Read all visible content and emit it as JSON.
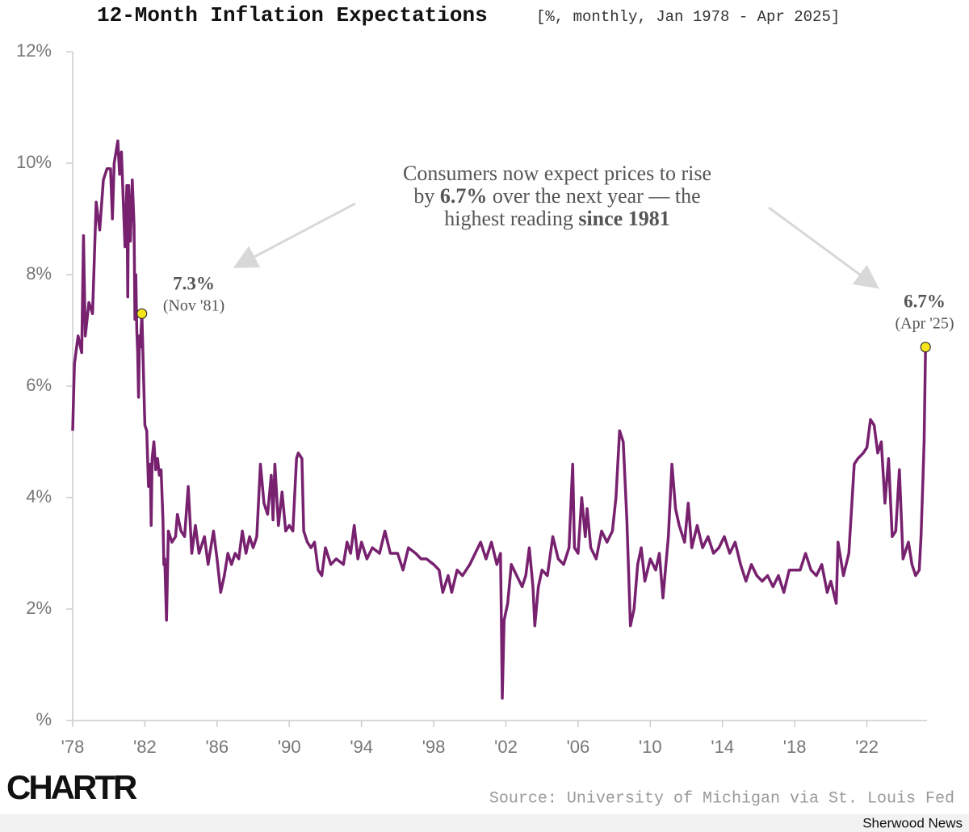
{
  "chart_data": {
    "type": "line",
    "title": "12-Month Inflation Expectations",
    "subtitle": "[%, monthly, Jan 1978 - Apr 2025]",
    "source": "Source: University of Michigan via St. Louis Fed",
    "brand": "CHARTR",
    "publisher": "Sherwood News",
    "x": [
      1978.0,
      1978.1,
      1978.3,
      1978.5,
      1978.6,
      1978.7,
      1978.9,
      1979.1,
      1979.3,
      1979.5,
      1979.7,
      1979.9,
      1980.1,
      1980.2,
      1980.3,
      1980.5,
      1980.6,
      1980.7,
      1980.9,
      1981.0,
      1981.05,
      1981.1,
      1981.2,
      1981.3,
      1981.4,
      1981.45,
      1981.5,
      1981.55,
      1981.6,
      1981.65,
      1981.7,
      1981.75,
      1981.833,
      1982.0,
      1982.1,
      1982.2,
      1982.3,
      1982.35,
      1982.4,
      1982.5,
      1982.6,
      1982.7,
      1982.8,
      1982.9,
      1983.0,
      1983.05,
      1983.1,
      1983.2,
      1983.3,
      1983.5,
      1983.7,
      1983.8,
      1984.0,
      1984.2,
      1984.4,
      1984.6,
      1984.8,
      1985.0,
      1985.3,
      1985.5,
      1985.8,
      1986.0,
      1986.2,
      1986.4,
      1986.6,
      1986.8,
      1987.0,
      1987.2,
      1987.4,
      1987.6,
      1987.8,
      1988.0,
      1988.2,
      1988.4,
      1988.6,
      1988.8,
      1989.0,
      1989.1,
      1989.2,
      1989.4,
      1989.6,
      1989.8,
      1990.0,
      1990.2,
      1990.4,
      1990.5,
      1990.7,
      1990.8,
      1991.0,
      1991.2,
      1991.4,
      1991.6,
      1991.8,
      1992.0,
      1992.3,
      1992.6,
      1993.0,
      1993.2,
      1993.4,
      1993.6,
      1993.8,
      1994.0,
      1994.3,
      1994.6,
      1995.0,
      1995.3,
      1995.6,
      1996.0,
      1996.3,
      1996.6,
      1997.0,
      1997.3,
      1997.6,
      1998.0,
      1998.3,
      1998.5,
      1998.8,
      1999.0,
      1999.3,
      1999.6,
      2000.0,
      2000.3,
      2000.6,
      2000.9,
      2001.2,
      2001.5,
      2001.7,
      2001.75,
      2001.8,
      2001.9,
      2002.1,
      2002.3,
      2002.6,
      2002.9,
      2003.1,
      2003.3,
      2003.5,
      2003.6,
      2003.8,
      2004.0,
      2004.3,
      2004.6,
      2004.9,
      2005.2,
      2005.5,
      2005.7,
      2005.8,
      2006.0,
      2006.2,
      2006.4,
      2006.5,
      2006.7,
      2007.0,
      2007.3,
      2007.6,
      2007.9,
      2008.1,
      2008.3,
      2008.5,
      2008.7,
      2008.9,
      2009.1,
      2009.3,
      2009.5,
      2009.7,
      2010.0,
      2010.3,
      2010.5,
      2010.7,
      2011.0,
      2011.2,
      2011.4,
      2011.6,
      2011.9,
      2012.1,
      2012.3,
      2012.6,
      2012.9,
      2013.2,
      2013.5,
      2013.8,
      2014.1,
      2014.4,
      2014.7,
      2015.0,
      2015.3,
      2015.6,
      2015.9,
      2016.2,
      2016.5,
      2016.8,
      2017.1,
      2017.4,
      2017.7,
      2018.0,
      2018.3,
      2018.6,
      2018.9,
      2019.2,
      2019.5,
      2019.8,
      2020.0,
      2020.3,
      2020.4,
      2020.7,
      2021.0,
      2021.3,
      2021.5,
      2021.8,
      2022.0,
      2022.2,
      2022.4,
      2022.6,
      2022.8,
      2023.0,
      2023.2,
      2023.4,
      2023.6,
      2023.8,
      2024.0,
      2024.3,
      2024.5,
      2024.7,
      2024.9,
      2025.0,
      2025.1,
      2025.17,
      2025.25
    ],
    "series": [
      {
        "name": "12-month inflation expectations",
        "color": "#77216f",
        "values": [
          5.2,
          6.4,
          6.9,
          6.6,
          8.7,
          6.9,
          7.5,
          7.3,
          9.3,
          8.8,
          9.7,
          9.9,
          9.9,
          9.0,
          10.0,
          10.4,
          9.8,
          10.2,
          8.5,
          9.6,
          7.6,
          9.6,
          8.6,
          9.7,
          8.9,
          7.2,
          8.0,
          7.0,
          6.6,
          5.8,
          6.9,
          6.7,
          7.3,
          5.3,
          5.2,
          4.2,
          4.6,
          3.5,
          4.7,
          5.0,
          4.5,
          4.7,
          4.4,
          4.5,
          3.6,
          2.8,
          2.9,
          1.8,
          3.4,
          3.2,
          3.3,
          3.7,
          3.4,
          3.3,
          4.2,
          3.0,
          3.5,
          3.0,
          3.3,
          2.8,
          3.4,
          2.9,
          2.3,
          2.6,
          3.0,
          2.8,
          3.0,
          2.9,
          3.4,
          3.0,
          3.3,
          3.1,
          3.3,
          4.6,
          3.9,
          3.7,
          4.4,
          3.6,
          4.6,
          3.5,
          4.1,
          3.4,
          3.5,
          3.4,
          4.7,
          4.8,
          4.7,
          3.4,
          3.2,
          3.1,
          3.2,
          2.7,
          2.6,
          3.1,
          2.8,
          2.9,
          2.8,
          3.2,
          3.0,
          3.5,
          2.9,
          3.2,
          2.9,
          3.1,
          3.0,
          3.4,
          3.0,
          3.0,
          2.7,
          3.1,
          3.0,
          2.9,
          2.9,
          2.8,
          2.7,
          2.3,
          2.6,
          2.3,
          2.7,
          2.6,
          2.8,
          3.0,
          3.2,
          2.9,
          3.2,
          2.8,
          3.0,
          1.8,
          0.4,
          1.8,
          2.1,
          2.8,
          2.6,
          2.4,
          2.6,
          3.1,
          2.4,
          1.7,
          2.4,
          2.7,
          2.6,
          3.3,
          2.9,
          2.8,
          3.1,
          4.6,
          3.1,
          3.0,
          4.0,
          3.3,
          3.8,
          3.1,
          2.9,
          3.4,
          3.2,
          3.4,
          4.0,
          5.2,
          5.0,
          3.6,
          1.7,
          2.0,
          2.8,
          3.1,
          2.5,
          2.9,
          2.7,
          3.0,
          2.2,
          3.3,
          4.6,
          3.8,
          3.5,
          3.2,
          3.9,
          3.1,
          3.5,
          3.1,
          3.3,
          3.0,
          3.1,
          3.3,
          3.0,
          3.2,
          2.8,
          2.5,
          2.8,
          2.6,
          2.5,
          2.6,
          2.4,
          2.6,
          2.3,
          2.7,
          2.7,
          2.7,
          3.0,
          2.7,
          2.6,
          2.8,
          2.3,
          2.5,
          2.1,
          3.2,
          2.6,
          3.0,
          4.6,
          4.7,
          4.8,
          4.9,
          5.4,
          5.3,
          4.8,
          5.0,
          3.9,
          4.7,
          3.3,
          3.4,
          4.5,
          2.9,
          3.2,
          2.8,
          2.6,
          2.7,
          3.3,
          4.3,
          5.0,
          6.7
        ]
      }
    ],
    "xlim": [
      1978,
      2025.33
    ],
    "xticks": [
      {
        "value": 1978,
        "label": "'78"
      },
      {
        "value": 1982,
        "label": "'82"
      },
      {
        "value": 1986,
        "label": "'86"
      },
      {
        "value": 1990,
        "label": "'90"
      },
      {
        "value": 1994,
        "label": "'94"
      },
      {
        "value": 1998,
        "label": "'98"
      },
      {
        "value": 2002,
        "label": "'02"
      },
      {
        "value": 2006,
        "label": "'06"
      },
      {
        "value": 2010,
        "label": "'10"
      },
      {
        "value": 2014,
        "label": "'14"
      },
      {
        "value": 2018,
        "label": "'18"
      },
      {
        "value": 2022,
        "label": "'22"
      }
    ],
    "ylim": [
      0,
      12
    ],
    "yticks": [
      {
        "value": 0,
        "label": "%"
      },
      {
        "value": 2,
        "label": "2%"
      },
      {
        "value": 4,
        "label": "4%"
      },
      {
        "value": 6,
        "label": "6%"
      },
      {
        "value": 8,
        "label": "8%"
      },
      {
        "value": 10,
        "label": "10%"
      },
      {
        "value": 12,
        "label": "12%"
      }
    ],
    "highlights": [
      {
        "x": 1981.833,
        "y": 7.3,
        "value_label": "7.3%",
        "date": "(Nov '81)",
        "color": "#f7e51c"
      },
      {
        "x": 2025.25,
        "y": 6.7,
        "value_label": "6.7%",
        "date": "(Apr '25)",
        "color": "#f7e51c"
      }
    ],
    "note": [
      [
        {
          "text": "Consumers now expect prices to rise"
        }
      ],
      [
        {
          "text": "by "
        },
        {
          "text": "6.7%",
          "bold": true
        },
        {
          "text": " over the next year — the"
        }
      ],
      [
        {
          "text": "highest reading "
        },
        {
          "text": "since 1981",
          "bold": true
        }
      ]
    ]
  }
}
